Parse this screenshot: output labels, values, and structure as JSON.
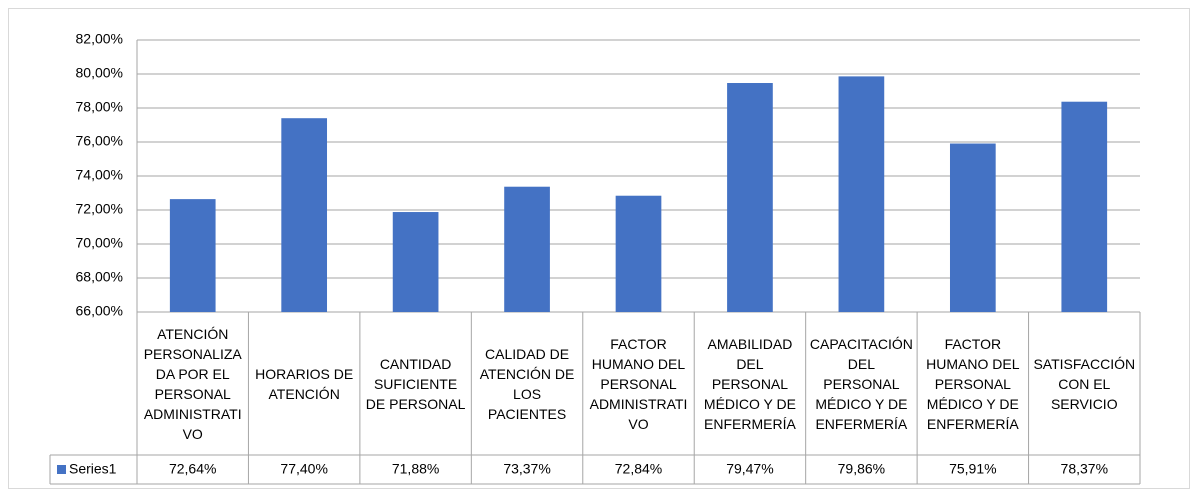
{
  "chart_data": {
    "type": "bar",
    "categories": [
      "ATENCIÓN PERSONALIZADA POR EL PERSONAL ADMINISTRATIVO",
      "HORARIOS DE ATENCIÓN",
      "CANTIDAD SUFICIENTE DE PERSONAL",
      "CALIDAD DE ATENCIÓN DE LOS PACIENTES",
      "FACTOR HUMANO DEL PERSONAL ADMINISTRATIVO",
      "AMABILIDAD DEL PERSONAL MÉDICO Y DE ENFERMERÍA",
      "CAPACITACIÓN DEL PERSONAL MÉDICO Y DE ENFERMERÍA",
      "FACTOR HUMANO DEL PERSONAL MÉDICO Y DE ENFERMERÍA",
      "SATISFACCIÓN CON EL SERVICIO"
    ],
    "series": [
      {
        "name": "Series1",
        "color": "#4472c4",
        "values": [
          72.64,
          77.4,
          71.88,
          73.37,
          72.84,
          79.47,
          79.86,
          75.91,
          78.37
        ],
        "value_labels": [
          "72,64%",
          "77,40%",
          "71,88%",
          "73,37%",
          "72,84%",
          "79,47%",
          "79,86%",
          "75,91%",
          "78,37%"
        ]
      }
    ],
    "ylim": [
      66,
      82
    ],
    "yticks": [
      {
        "value": 66,
        "label": "66,00%"
      },
      {
        "value": 68,
        "label": "68,00%"
      },
      {
        "value": 70,
        "label": "70,00%"
      },
      {
        "value": 72,
        "label": "72,00%"
      },
      {
        "value": 74,
        "label": "74,00%"
      },
      {
        "value": 76,
        "label": "76,00%"
      },
      {
        "value": 78,
        "label": "78,00%"
      },
      {
        "value": 80,
        "label": "80,00%"
      },
      {
        "value": 82,
        "label": "82,00%"
      }
    ],
    "grid": true
  }
}
